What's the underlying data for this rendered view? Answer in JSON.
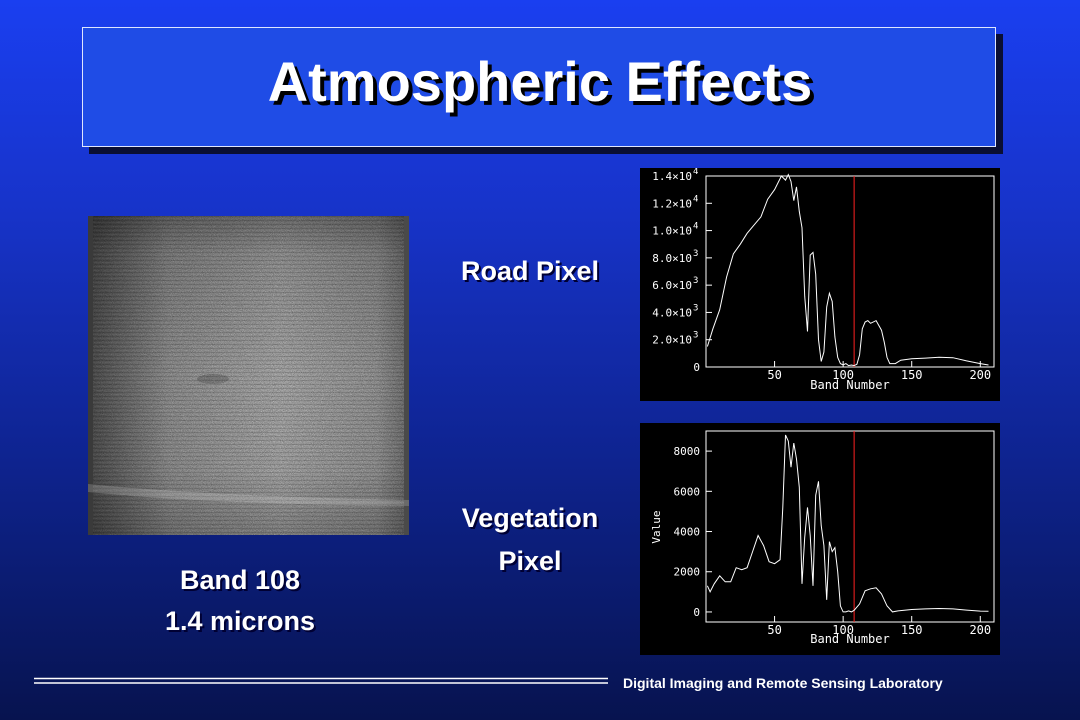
{
  "title": "Atmospheric Effects",
  "image": {
    "caption_line1": "Band 108",
    "caption_line2": "1.4 microns"
  },
  "plots": [
    {
      "label": "Road Pixel",
      "xlabel": "Band Number",
      "ylabel": "",
      "x_ticks": [
        "50",
        "100",
        "150",
        "200"
      ],
      "y_ticks": [
        "0",
        "2.0×10",
        "4.0×10",
        "6.0×10",
        "8.0×10",
        "1.0×10",
        "1.2×10",
        "1.4×10"
      ],
      "y_tick_exponents": [
        "",
        "3",
        "3",
        "3",
        "3",
        "4",
        "4",
        "4"
      ]
    },
    {
      "label_line1": "Vegetation",
      "label_line2": "Pixel",
      "xlabel": "Band Number",
      "ylabel": "Value",
      "x_ticks": [
        "50",
        "100",
        "150",
        "200"
      ],
      "y_ticks": [
        "0",
        "2000",
        "4000",
        "6000",
        "8000"
      ]
    }
  ],
  "chart_data": [
    {
      "type": "line",
      "title": "",
      "xlabel": "Band Number",
      "ylabel": "",
      "xlim": [
        0,
        210
      ],
      "ylim": [
        0,
        14000
      ],
      "marker_band": 108,
      "marker_color": "#ff2020",
      "line_color": "#ffffff",
      "x": [
        1,
        5,
        10,
        15,
        20,
        25,
        30,
        35,
        40,
        45,
        50,
        55,
        58,
        60,
        62,
        64,
        66,
        68,
        70,
        72,
        74,
        76,
        78,
        80,
        82,
        84,
        86,
        88,
        90,
        92,
        94,
        96,
        98,
        100,
        102,
        104,
        106,
        108,
        110,
        112,
        114,
        116,
        118,
        120,
        124,
        128,
        130,
        132,
        134,
        138,
        142,
        150,
        160,
        170,
        180,
        190,
        200,
        206
      ],
      "y": [
        1500,
        2800,
        4200,
        6600,
        8300,
        9000,
        9800,
        10400,
        11000,
        12300,
        13000,
        14000,
        13700,
        14100,
        13600,
        12200,
        13200,
        11400,
        10200,
        5200,
        2600,
        8200,
        8400,
        6800,
        2000,
        400,
        1100,
        4400,
        5400,
        4800,
        2200,
        700,
        250,
        150,
        250,
        100,
        150,
        100,
        200,
        900,
        2800,
        3300,
        3400,
        3200,
        3400,
        2700,
        1800,
        700,
        250,
        250,
        500,
        600,
        650,
        720,
        680,
        450,
        250,
        150
      ]
    },
    {
      "type": "line",
      "title": "",
      "xlabel": "Band Number",
      "ylabel": "Value",
      "xlim": [
        0,
        210
      ],
      "ylim": [
        -500,
        9000
      ],
      "marker_band": 108,
      "marker_color": "#ff2020",
      "line_color": "#ffffff",
      "x": [
        1,
        3,
        6,
        10,
        14,
        18,
        22,
        26,
        30,
        34,
        38,
        42,
        46,
        50,
        54,
        56,
        58,
        60,
        62,
        64,
        66,
        68,
        70,
        72,
        74,
        76,
        78,
        80,
        82,
        84,
        86,
        88,
        90,
        92,
        94,
        96,
        98,
        100,
        102,
        104,
        106,
        108,
        112,
        116,
        120,
        124,
        128,
        132,
        136,
        140,
        150,
        160,
        170,
        180,
        190,
        200,
        206
      ],
      "y": [
        1300,
        1000,
        1400,
        1800,
        1500,
        1500,
        2200,
        2100,
        2200,
        3000,
        3800,
        3300,
        2500,
        2400,
        2600,
        5200,
        8800,
        8500,
        7200,
        8400,
        7600,
        6200,
        1400,
        3700,
        5200,
        3800,
        1300,
        5800,
        6500,
        4300,
        3300,
        600,
        3500,
        3000,
        3200,
        2000,
        300,
        0,
        0,
        50,
        0,
        80,
        400,
        1050,
        1150,
        1200,
        900,
        300,
        0,
        50,
        120,
        150,
        170,
        150,
        90,
        40,
        30
      ]
    }
  ],
  "footer": {
    "text": "Digital Imaging and Remote Sensing Laboratory"
  }
}
